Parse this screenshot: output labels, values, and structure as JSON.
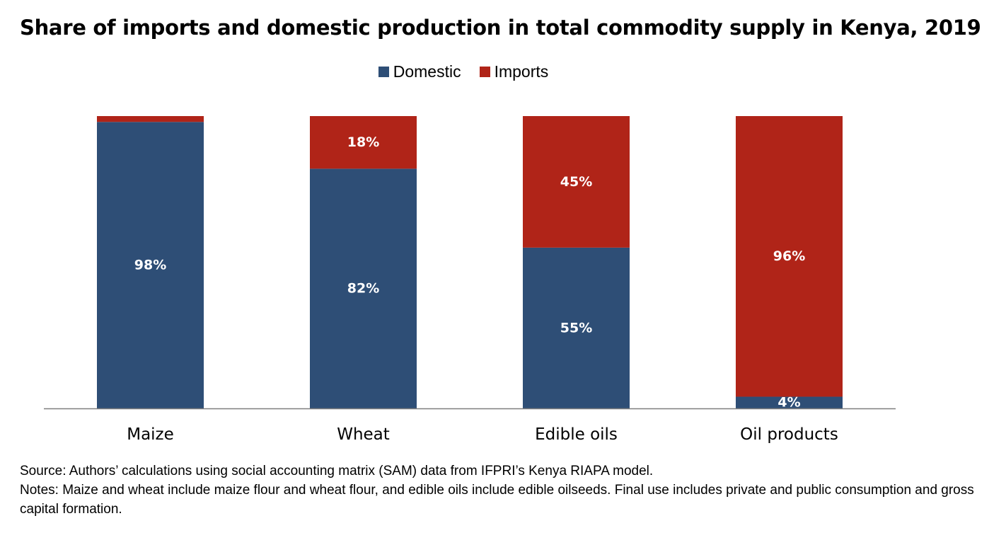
{
  "chart_data": {
    "type": "bar",
    "stacked": true,
    "title": "Share of imports and domestic production in total commodity supply in Kenya, 2019",
    "categories": [
      "Maize",
      "Wheat",
      "Edible oils",
      "Oil products"
    ],
    "series": [
      {
        "name": "Domestic",
        "color": "#2e4e76",
        "values": [
          98,
          82,
          55,
          4
        ],
        "labels": [
          "98%",
          "82%",
          "55%",
          "4%"
        ]
      },
      {
        "name": "Imports",
        "color": "#b02418",
        "values": [
          2,
          18,
          45,
          96
        ],
        "labels": [
          "",
          "18%",
          "45%",
          "96%"
        ]
      }
    ],
    "ylim": [
      0,
      100
    ],
    "xlabel": "",
    "ylabel": "",
    "legend": "top-center"
  },
  "notes": {
    "source": "Source: Authors’ calculations using social accounting matrix (SAM) data from IFPRI’s Kenya RIAPA model.",
    "notes": "Notes: Maize and wheat include maize flour and wheat flour, and edible oils include edible oilseeds. Final use includes private and public consumption and gross capital formation."
  }
}
